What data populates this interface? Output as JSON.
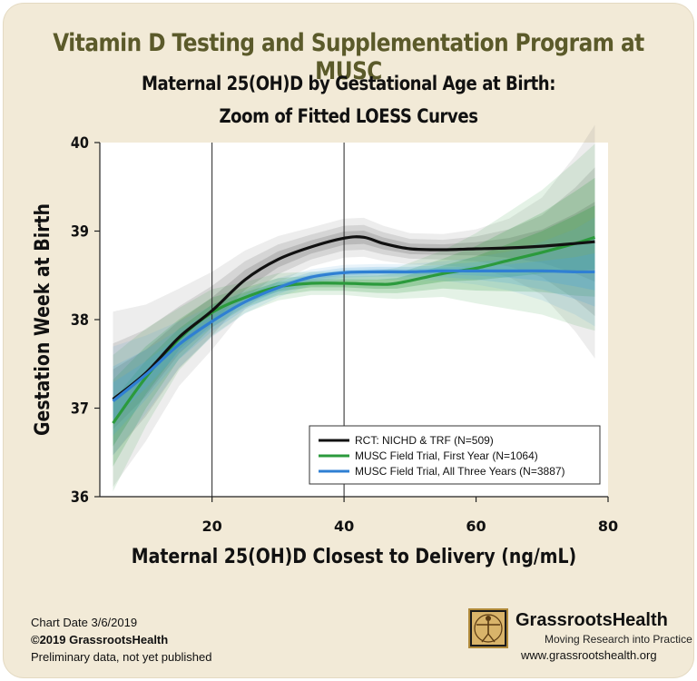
{
  "header": {
    "title": "Vitamin D Testing and Supplementation Program at MUSC",
    "subtitle_line1": "Maternal 25(OH)D by Gestational Age at Birth:",
    "subtitle_line2": "Zoom of Fitted LOESS Curves"
  },
  "footer": {
    "chart_date": "Chart Date 3/6/2019",
    "copyright": "©2019 GrassrootsHealth",
    "note": "Preliminary data, not yet published",
    "brand": "GrassrootsHealth",
    "tagline": "Moving Research into Practice",
    "website": "www.grassrootshealth.org"
  },
  "chart_data": {
    "type": "line",
    "xlabel": "Maternal 25(OH)D Closest to Delivery (ng/mL)",
    "ylabel": "Gestation Week at Birth",
    "xlim": [
      3,
      80
    ],
    "ylim": [
      36,
      40
    ],
    "xticks": [
      20,
      40,
      60,
      80
    ],
    "yticks": [
      36,
      37,
      38,
      39,
      40
    ],
    "reference_lines_x": [
      20,
      40
    ],
    "grid": false,
    "legend_position": "bottom-right",
    "series": [
      {
        "name": "RCT: NICHD & TRF (N=509)",
        "color": "#111111",
        "band_color": "#777777",
        "x": [
          5,
          10,
          15,
          20,
          25,
          30,
          35,
          40,
          43,
          46,
          50,
          55,
          60,
          65,
          70,
          75,
          78
        ],
        "y": [
          37.1,
          37.4,
          37.8,
          38.1,
          38.45,
          38.68,
          38.82,
          38.92,
          38.93,
          38.86,
          38.8,
          38.79,
          38.8,
          38.81,
          38.83,
          38.86,
          38.88
        ],
        "band": [
          0.45,
          0.35,
          0.25,
          0.2,
          0.15,
          0.12,
          0.1,
          0.1,
          0.1,
          0.09,
          0.08,
          0.08,
          0.1,
          0.15,
          0.25,
          0.45,
          0.6
        ]
      },
      {
        "name": "MUSC Field Trial, First Year (N=1064)",
        "color": "#2b9a3c",
        "band_color": "#2b9a3c",
        "x": [
          5,
          10,
          15,
          20,
          25,
          30,
          35,
          40,
          45,
          48,
          55,
          60,
          65,
          70,
          75,
          78
        ],
        "y": [
          36.83,
          37.35,
          37.78,
          38.08,
          38.25,
          38.37,
          38.41,
          38.41,
          38.4,
          38.41,
          38.52,
          38.58,
          38.67,
          38.76,
          38.86,
          38.93
        ],
        "band": [
          0.35,
          0.25,
          0.16,
          0.12,
          0.08,
          0.07,
          0.06,
          0.06,
          0.07,
          0.08,
          0.12,
          0.18,
          0.25,
          0.32,
          0.42,
          0.48
        ]
      },
      {
        "name": "MUSC Field Trial, All Three Years (N=3887)",
        "color": "#2f7fd3",
        "band_color": "#4aa6d8",
        "x": [
          5,
          10,
          15,
          20,
          25,
          30,
          35,
          40,
          45,
          50,
          55,
          60,
          65,
          70,
          75,
          78
        ],
        "y": [
          37.08,
          37.38,
          37.72,
          37.98,
          38.2,
          38.36,
          38.48,
          38.53,
          38.54,
          38.54,
          38.55,
          38.55,
          38.55,
          38.55,
          38.54,
          38.54
        ],
        "band": [
          0.28,
          0.2,
          0.12,
          0.08,
          0.06,
          0.05,
          0.04,
          0.04,
          0.04,
          0.04,
          0.05,
          0.07,
          0.1,
          0.15,
          0.22,
          0.28
        ]
      }
    ]
  }
}
